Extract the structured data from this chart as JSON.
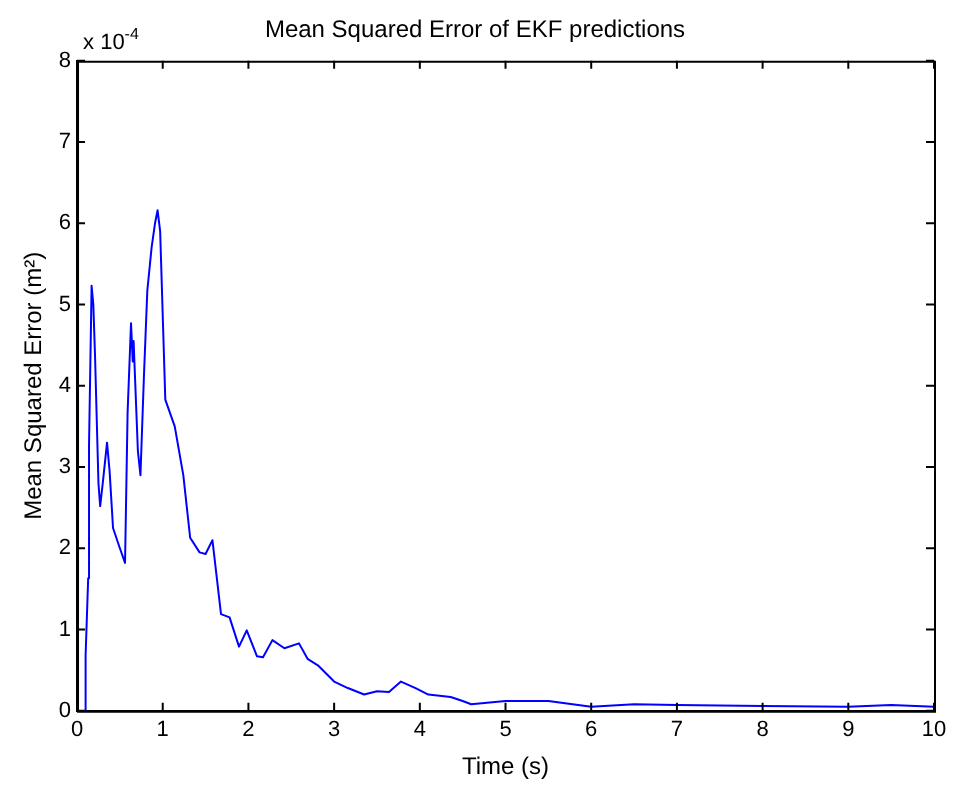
{
  "chart_data": {
    "type": "line",
    "title": "Mean Squared Error of EKF predictions",
    "xlabel": "Time (s)",
    "ylabel": "Mean Squared Error (m²)",
    "annotations": [
      "x 10$^{-4}$"
    ],
    "x": [
      0.1,
      0.1,
      0.13,
      0.14,
      0.17,
      0.19,
      0.21,
      0.25,
      0.27,
      0.3,
      0.35,
      0.38,
      0.42,
      0.5,
      0.56,
      0.59,
      0.63,
      0.65,
      0.66,
      0.71,
      0.74,
      0.78,
      0.82,
      0.87,
      0.91,
      0.94,
      0.97,
      1.03,
      1.14,
      1.24,
      1.32,
      1.43,
      1.5,
      1.58,
      1.68,
      1.78,
      1.89,
      1.98,
      2.1,
      2.17,
      2.28,
      2.42,
      2.59,
      2.69,
      2.81,
      3.0,
      3.16,
      3.35,
      3.5,
      3.64,
      3.78,
      3.95,
      4.1,
      4.36,
      4.5,
      4.6,
      5.0,
      5.5,
      6.0,
      6.5,
      7.0,
      8.0,
      9.0,
      9.5,
      10.0
    ],
    "series": [
      {
        "color": "#0000ff",
        "values": [
          0,
          0.68,
          1.63,
          3.27,
          5.23,
          5.0,
          4.37,
          2.8,
          2.52,
          2.8,
          3.3,
          2.95,
          2.25,
          2.0,
          1.82,
          3.67,
          4.77,
          4.3,
          4.55,
          3.2,
          2.9,
          4.1,
          5.17,
          5.7,
          6.0,
          6.16,
          5.9,
          3.83,
          3.5,
          2.9,
          2.13,
          1.95,
          1.93,
          2.1,
          1.19,
          1.15,
          0.79,
          0.99,
          0.67,
          0.66,
          0.87,
          0.77,
          0.83,
          0.64,
          0.56,
          0.36,
          0.28,
          0.2,
          0.24,
          0.23,
          0.36,
          0.28,
          0.2,
          0.17,
          0.12,
          0.08,
          0.12,
          0.12,
          0.05,
          0.08,
          0.07,
          0.06,
          0.05,
          0.07,
          0.05
        ]
      }
    ],
    "xlim": [
      0,
      10
    ],
    "xticks": [
      0,
      1,
      2,
      3,
      4,
      5,
      6,
      7,
      8,
      9,
      10
    ],
    "ylim": [
      0,
      8
    ],
    "yticks": [
      0,
      1,
      2,
      3,
      4,
      5,
      6,
      7,
      8
    ],
    "marker": "none",
    "line_style": "solid"
  }
}
